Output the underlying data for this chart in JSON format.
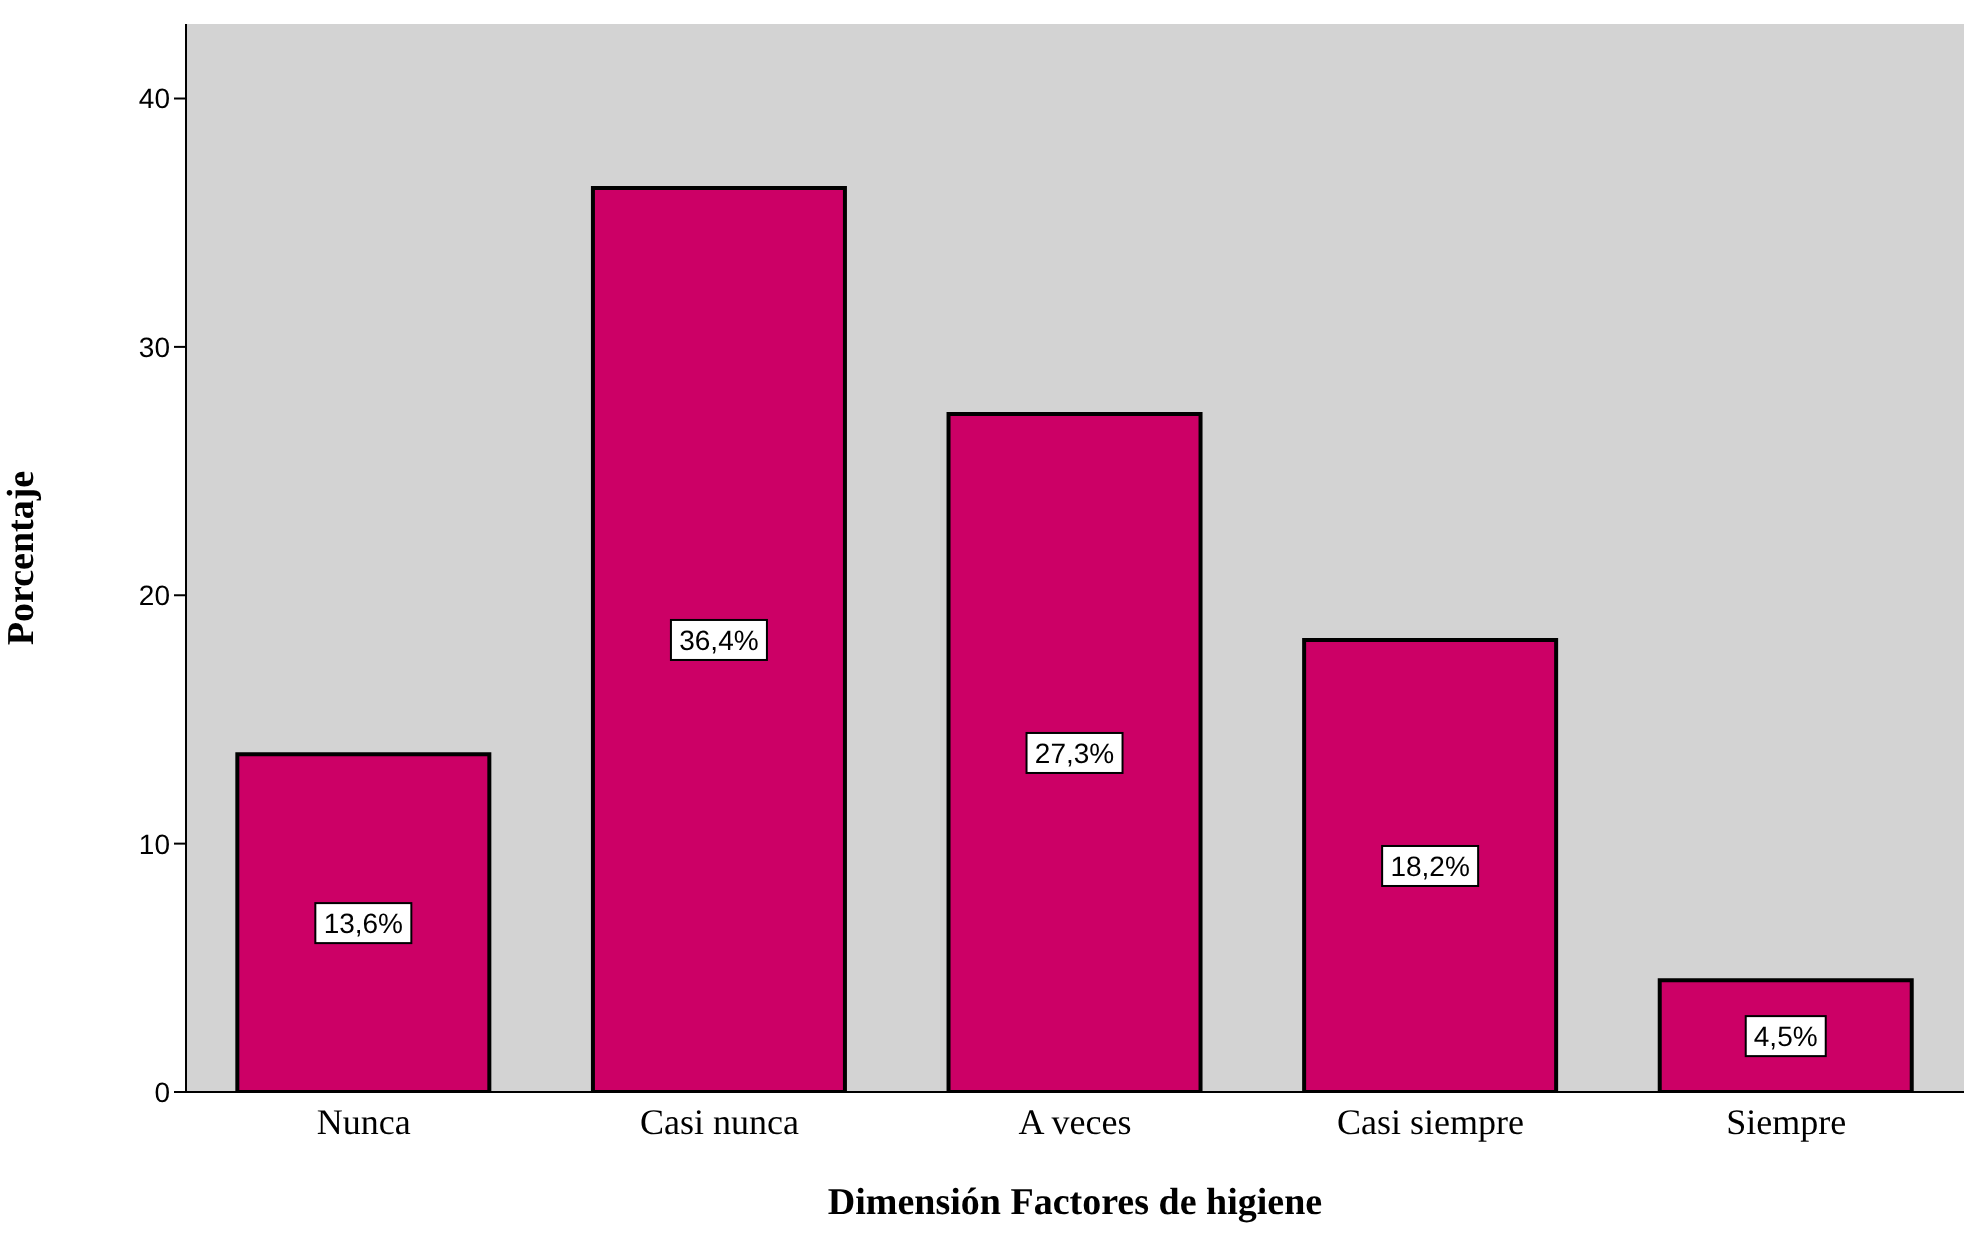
{
  "chart_data": {
    "type": "bar",
    "xlabel": "Dimensión Factores de higiene",
    "ylabel": "Porcentaje",
    "categories": [
      "Nunca",
      "Casi nunca",
      "A veces",
      "Casi siempre",
      "Siempre"
    ],
    "values": [
      13.6,
      36.4,
      27.3,
      18.2,
      4.5
    ],
    "value_labels": [
      "13,6%",
      "36,4%",
      "27,3%",
      "18,2%",
      "4,5%"
    ],
    "color": "#cc0066",
    "ylim": [
      0,
      43
    ],
    "yticks": [
      0,
      10,
      20,
      30,
      40
    ],
    "grid": false
  }
}
